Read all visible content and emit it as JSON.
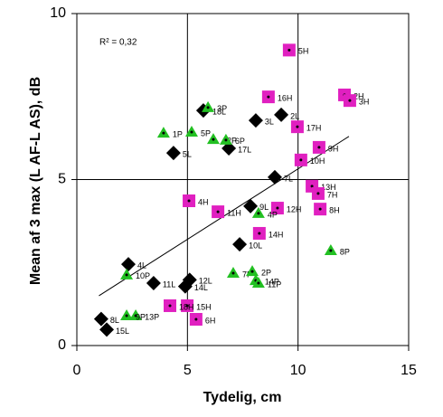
{
  "chart_data": {
    "type": "scatter",
    "x_label": "Tydelig, cm",
    "y_label": "Mean af 3 max (L AF-L AS), dB",
    "annotation": "R² = 0,32",
    "xlim": [
      0,
      15
    ],
    "xticks": [
      0,
      5,
      10,
      15
    ],
    "ylim": [
      0,
      10
    ],
    "yticks": [
      0,
      5,
      10
    ],
    "grid": true,
    "series": [
      {
        "marker": "diamond",
        "color": "#000000",
        "x": [
          5.72,
          8.09,
          9.24,
          4.37,
          6.87,
          8.95,
          7.85,
          7.36,
          2.33,
          3.47,
          4.9,
          5.1,
          1.1,
          1.35
        ],
        "y": [
          7.08,
          6.78,
          6.95,
          5.8,
          5.94,
          5.07,
          4.2,
          3.05,
          2.45,
          1.88,
          1.78,
          1.98,
          0.8,
          0.48
        ],
        "labels": [
          "18L",
          "3L",
          "2L",
          "5L",
          "17L",
          "7L",
          "9L",
          "10L",
          "4L",
          "11L",
          "14L",
          "12L",
          "8L",
          "15L"
        ]
      },
      {
        "marker": "square",
        "color": "#e020c0",
        "x": [
          9.6,
          8.66,
          12.1,
          12.34,
          9.97,
          10.95,
          10.13,
          10.63,
          10.91,
          11.0,
          9.07,
          5.07,
          6.38,
          8.25,
          4.99,
          5.39,
          4.21
        ],
        "y": [
          8.9,
          7.49,
          7.55,
          7.38,
          6.59,
          5.97,
          5.59,
          4.8,
          4.58,
          4.11,
          4.14,
          4.36,
          4.03,
          3.38,
          1.2,
          0.79,
          1.2
        ],
        "labels": [
          "5H",
          "16H",
          "2H",
          "3H",
          "17H",
          "9H",
          "10H",
          "13H",
          "7H",
          "8H",
          "12H",
          "4H",
          "11H",
          "14H",
          "15H",
          "6H",
          "18H"
        ]
      },
      {
        "marker": "triangle",
        "color": "#22c022",
        "x": [
          3.92,
          5.19,
          5.93,
          6.17,
          6.74,
          8.21,
          11.48,
          2.25,
          7.07,
          7.93,
          8.09,
          8.21,
          2.66,
          2.25
        ],
        "y": [
          6.4,
          6.43,
          7.17,
          6.21,
          6.19,
          3.98,
          2.86,
          2.13,
          2.18,
          2.23,
          1.96,
          1.88,
          0.9,
          0.9
        ],
        "labels": [
          "1P",
          "5P",
          "3P",
          "12P",
          "6P",
          "4P",
          "8P",
          "10P",
          "7P",
          "2P",
          "14P",
          "11P",
          "13P",
          "9P"
        ]
      }
    ],
    "trendline": {
      "color": "#000000",
      "x": [
        1.0,
        12.3
      ],
      "y": [
        1.5,
        6.3
      ]
    }
  }
}
